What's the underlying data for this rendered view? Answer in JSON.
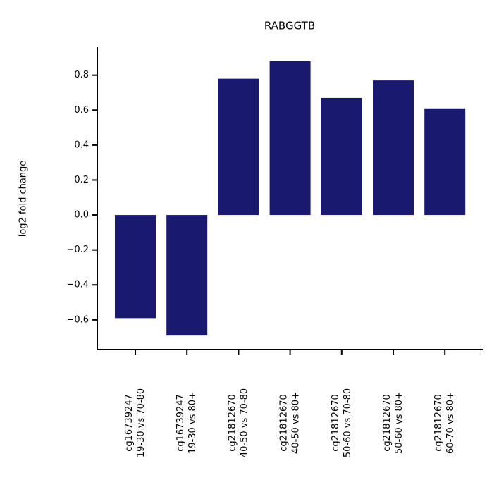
{
  "chart_data": {
    "type": "bar",
    "title": "RABGGTB",
    "ylabel": "log2 fold change",
    "categories": [
      [
        "cg16739247",
        "19-30 vs 70-80"
      ],
      [
        "cg16739247",
        "19-30 vs 80+"
      ],
      [
        "cg21812670",
        "40-50 vs 70-80"
      ],
      [
        "cg21812670",
        "40-50 vs 80+"
      ],
      [
        "cg21812670",
        "50-60 vs 70-80"
      ],
      [
        "cg21812670",
        "50-60 vs 80+"
      ],
      [
        "cg21812670",
        "60-70 vs 80+"
      ]
    ],
    "values": [
      -0.59,
      -0.69,
      0.78,
      0.88,
      0.67,
      0.77,
      0.61
    ],
    "color": "#191970",
    "ylim": [
      -0.77,
      0.96
    ],
    "yticks": [
      {
        "value": -0.6,
        "label": "−0.6"
      },
      {
        "value": -0.4,
        "label": "−0.4"
      },
      {
        "value": -0.2,
        "label": "−0.2"
      },
      {
        "value": 0,
        "label": "0.0"
      },
      0.2,
      0.4,
      0.6,
      0.8
    ],
    "grid": false
  }
}
